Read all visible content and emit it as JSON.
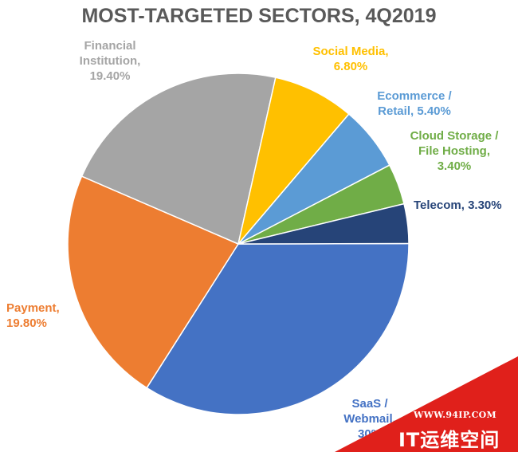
{
  "chart_data": {
    "type": "pie",
    "title": "MOST-TARGETED SECTORS, 4Q2019",
    "unit": "%",
    "slices": [
      {
        "label": "SaaS / Webmail, 30%",
        "value": 30.0,
        "color": "#4472C4",
        "label_color": "#4472C4"
      },
      {
        "label": "Payment, 19.80%",
        "value": 19.8,
        "color": "#ED7D31",
        "label_color": "#ED7D31"
      },
      {
        "label": "Financial Institution, 19.40%",
        "value": 19.4,
        "color": "#A5A5A5",
        "label_color": "#A5A5A5"
      },
      {
        "label": "Social Media, 6.80%",
        "value": 6.8,
        "color": "#FFC000",
        "label_color": "#FFC000"
      },
      {
        "label": "Ecommerce / Retail, 5.40%",
        "value": 5.4,
        "color": "#5B9BD5",
        "label_color": "#5B9BD5"
      },
      {
        "label": "Cloud Storage / File Hosting, 3.40%",
        "value": 3.4,
        "color": "#70AD47",
        "label_color": "#70AD47"
      },
      {
        "label": "Telecom, 3.30%",
        "value": 3.3,
        "color": "#264478",
        "label_color": "#264478"
      }
    ],
    "label_lines": {
      "saas": [
        "SaaS /",
        "Webmail,",
        "30%"
      ],
      "payment": [
        "Payment,",
        "19.80%"
      ],
      "financial": [
        "Financial",
        "Institution,",
        "19.40%"
      ],
      "social": [
        "Social Media,",
        "6.80%"
      ],
      "ecommerce": [
        "Ecommerce /",
        "Retail, 5.40%"
      ],
      "cloud": [
        "Cloud Storage /",
        "File Hosting,",
        "3.40%"
      ],
      "telecom": [
        "Telecom, 3.30%"
      ]
    }
  },
  "watermark": {
    "url": "WWW.94IP.COM",
    "name": "IT运维空间",
    "color": "#E0201B"
  }
}
